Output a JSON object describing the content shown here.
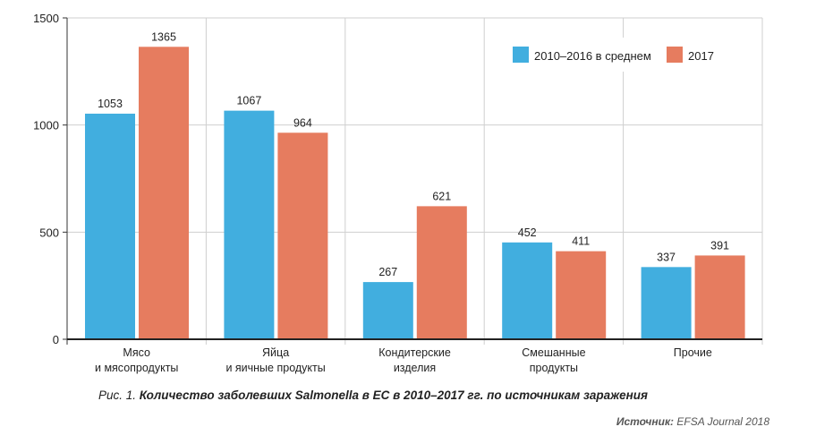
{
  "chart_data": {
    "type": "bar",
    "categories": [
      [
        "Мясо",
        "и мясопродукты"
      ],
      [
        "Яйца",
        "и яичные продукты"
      ],
      [
        "Кондитерские",
        "изделия"
      ],
      [
        "Смешанные",
        "продукты"
      ],
      [
        "Прочие"
      ]
    ],
    "series": [
      {
        "name": "2010–2016 в среднем",
        "color": "#41AEDF",
        "values": [
          1053,
          1067,
          267,
          452,
          337
        ]
      },
      {
        "name": "2017",
        "color": "#E67C5F",
        "values": [
          1365,
          964,
          621,
          411,
          391
        ]
      }
    ],
    "yticks": [
      0,
      500,
      1000,
      1500
    ],
    "ylim": [
      0,
      1500
    ],
    "grid": true,
    "legend": "top-right"
  },
  "caption": {
    "prefix": "Рис. 1. ",
    "text": "Количество заболевших Salmonella в ЕС в 2010–2017 гг. по источникам заражения"
  },
  "source": {
    "label": "Источник:",
    "text": " EFSA Journal 2018"
  }
}
